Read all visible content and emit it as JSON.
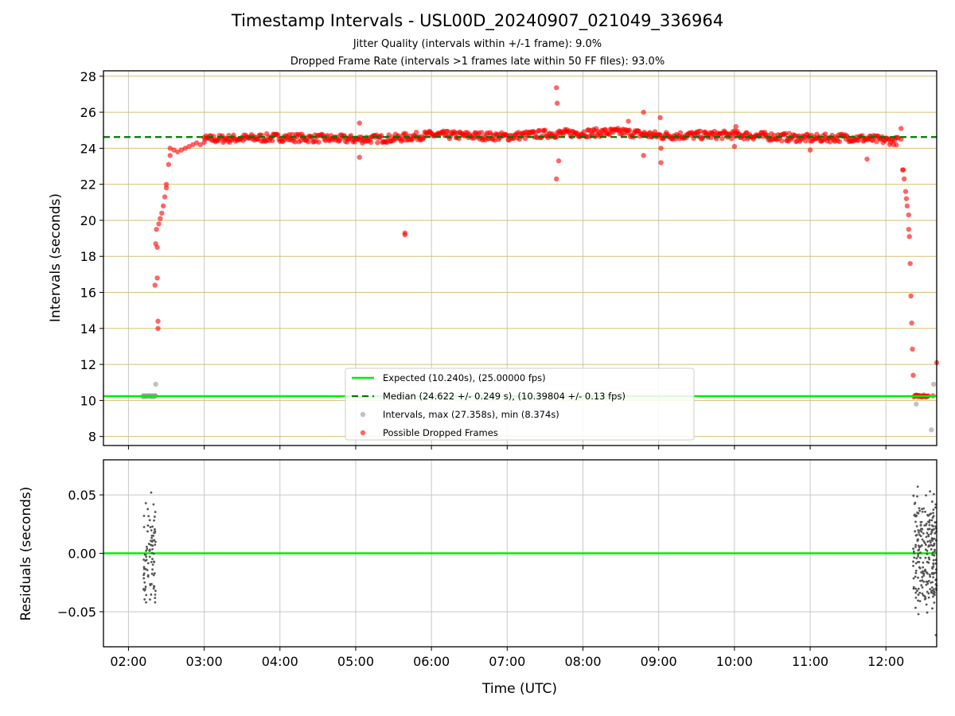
{
  "title": "Timestamp Intervals - USL00D_20240907_021049_336964",
  "subtitle_1": "Jitter Quality (intervals within +/-1 frame): 9.0%",
  "subtitle_2": "Dropped Frame Rate (intervals >1 frames late within 50 FF files): 93.0%",
  "colors": {
    "expected": "#00ee00",
    "median": "#007700",
    "intervals": "#999999",
    "dropped": "#ff0000",
    "hgrid": "#d4bf78",
    "vgrid": "#c8c8c8",
    "residuals": "#555555"
  },
  "chart_data": [
    {
      "type": "scatter",
      "name": "intervals-panel",
      "ylabel": "Intervals (seconds)",
      "xlabel": "",
      "x_tick_labels": [
        "02:00",
        "03:00",
        "04:00",
        "05:00",
        "06:00",
        "07:00",
        "08:00",
        "09:00",
        "10:00",
        "11:00",
        "12:00"
      ],
      "xlim_hours": [
        1.67,
        12.67
      ],
      "ylim": [
        7.5,
        28.3
      ],
      "y_ticks": [
        8,
        10,
        12,
        14,
        16,
        18,
        20,
        22,
        24,
        26,
        28
      ],
      "y_tick_labels": [
        "8",
        "10",
        "12",
        "14",
        "16",
        "18",
        "20",
        "22",
        "24",
        "26",
        "28"
      ],
      "grid": "horizontal (yellow) and vertical (gray)",
      "legend_position": "lower-center",
      "expected_interval": 10.24,
      "median_interval": 24.622,
      "legend": [
        {
          "key": "expected",
          "label": "Expected (10.240s), (25.00000 fps)"
        },
        {
          "key": "median",
          "label": "Median (24.622 +/- 0.249 s), (10.39804 +/- 0.13 fps)"
        },
        {
          "key": "intervals",
          "label": "Intervals, max (27.358s), min (8.374s)"
        },
        {
          "key": "dropped",
          "label": "Possible Dropped Frames"
        }
      ],
      "series": [
        {
          "name": "Intervals, max (27.358s), min (8.374s)",
          "points": [
            [
              2.2,
              10.24
            ],
            [
              2.23,
              10.24
            ],
            [
              2.26,
              10.25
            ],
            [
              2.29,
              10.24
            ],
            [
              2.32,
              10.23
            ],
            [
              2.35,
              10.25
            ],
            [
              2.36,
              10.9
            ],
            [
              12.4,
              9.8
            ],
            [
              12.6,
              8.37
            ],
            [
              12.63,
              10.9
            ]
          ]
        },
        {
          "name": "Possible Dropped Frames",
          "points": [
            [
              2.35,
              16.4
            ],
            [
              2.36,
              18.7
            ],
            [
              2.37,
              19.5
            ],
            [
              2.38,
              18.5
            ],
            [
              2.38,
              16.8
            ],
            [
              2.39,
              14.4
            ],
            [
              2.39,
              14.0
            ],
            [
              2.4,
              19.8
            ],
            [
              2.42,
              20.1
            ],
            [
              2.44,
              20.4
            ],
            [
              2.46,
              20.8
            ],
            [
              2.48,
              21.3
            ],
            [
              2.5,
              21.8
            ],
            [
              2.5,
              22.0
            ],
            [
              2.53,
              23.1
            ],
            [
              2.55,
              23.6
            ],
            [
              2.55,
              24.0
            ],
            [
              2.6,
              23.9
            ],
            [
              2.65,
              23.8
            ],
            [
              2.7,
              23.9
            ],
            [
              2.75,
              24.0
            ],
            [
              2.8,
              24.1
            ],
            [
              2.85,
              24.2
            ],
            [
              2.9,
              24.3
            ],
            [
              2.95,
              24.2
            ],
            [
              3.0,
              24.6
            ],
            [
              5.05,
              25.4
            ],
            [
              5.05,
              23.5
            ],
            [
              5.65,
              19.3
            ],
            [
              5.65,
              19.2
            ],
            [
              7.65,
              27.36
            ],
            [
              7.66,
              26.5
            ],
            [
              7.65,
              22.3
            ],
            [
              7.68,
              23.3
            ],
            [
              8.6,
              25.5
            ],
            [
              8.8,
              26.0
            ],
            [
              8.8,
              23.6
            ],
            [
              9.02,
              25.7
            ],
            [
              9.03,
              24.0
            ],
            [
              9.03,
              23.2
            ],
            [
              10.0,
              24.1
            ],
            [
              10.02,
              25.2
            ],
            [
              11.0,
              23.9
            ],
            [
              11.75,
              23.4
            ],
            [
              12.2,
              25.1
            ],
            [
              12.2,
              24.5
            ],
            [
              12.22,
              22.8
            ],
            [
              12.23,
              22.8
            ],
            [
              12.24,
              22.3
            ],
            [
              12.26,
              21.6
            ],
            [
              12.27,
              21.2
            ],
            [
              12.28,
              20.8
            ],
            [
              12.3,
              20.3
            ],
            [
              12.3,
              19.5
            ],
            [
              12.31,
              19.1
            ],
            [
              12.32,
              17.6
            ],
            [
              12.33,
              15.8
            ],
            [
              12.34,
              14.3
            ],
            [
              12.35,
              12.85
            ],
            [
              12.36,
              11.4
            ],
            [
              12.37,
              10.2
            ],
            [
              12.5,
              10.3
            ],
            [
              12.56,
              10.25
            ],
            [
              12.62,
              10.26
            ],
            [
              12.67,
              12.1
            ]
          ]
        }
      ]
    },
    {
      "type": "scatter",
      "name": "residuals-panel",
      "ylabel": "Residuals (seconds)",
      "xlabel": "Time (UTC)",
      "x_tick_labels": [
        "02:00",
        "03:00",
        "04:00",
        "05:00",
        "06:00",
        "07:00",
        "08:00",
        "09:00",
        "10:00",
        "11:00",
        "12:00"
      ],
      "xlim_hours": [
        1.67,
        12.67
      ],
      "ylim": [
        -0.08,
        0.08
      ],
      "y_ticks": [
        -0.05,
        0.0,
        0.05
      ],
      "y_tick_labels": [
        "−0.05",
        "0.00",
        "0.05"
      ],
      "grid": "horizontal and vertical (gray)",
      "residual_range": [
        -0.07,
        0.057
      ],
      "zero_line": 0.0
    }
  ]
}
